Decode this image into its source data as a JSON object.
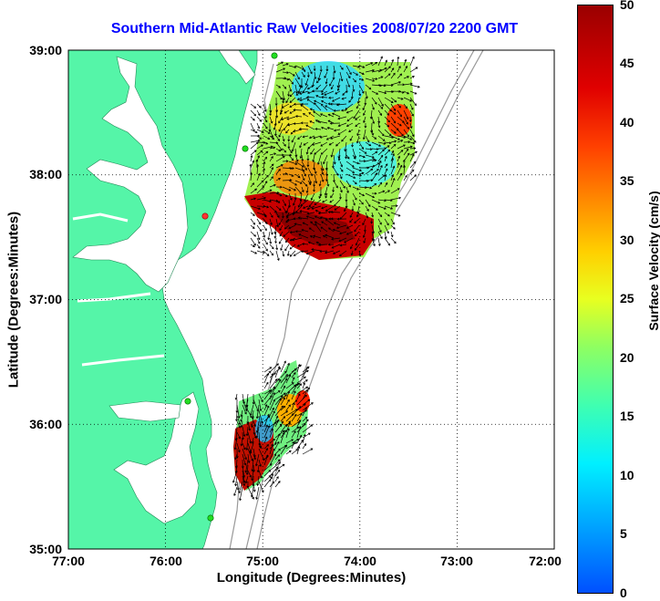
{
  "title": "Southern Mid-Atlantic Raw Velocities 2008/07/20 2200 GMT",
  "x_axis": {
    "label": "Longitude (Degrees:Minutes)",
    "ticks": [
      "77:00",
      "76:00",
      "75:00",
      "74:00",
      "73:00",
      "72:00"
    ],
    "range": [
      -77,
      -72
    ]
  },
  "y_axis": {
    "label": "Latitude (Degrees:Minutes)",
    "ticks": [
      "39:00",
      "38:00",
      "37:00",
      "36:00",
      "35:00"
    ],
    "range": [
      35,
      39
    ]
  },
  "colorbar": {
    "label": "Surface Velocity (cm/s)",
    "ticks": [
      "50",
      "45",
      "40",
      "35",
      "30",
      "25",
      "20",
      "15",
      "10",
      "5",
      "0"
    ],
    "range": [
      0,
      50
    ]
  },
  "colors": {
    "land": "#55f5a8",
    "title": "#0000ff",
    "station_green": "#22dd22",
    "station_red": "#ff3333"
  },
  "grid": "dotted"
}
